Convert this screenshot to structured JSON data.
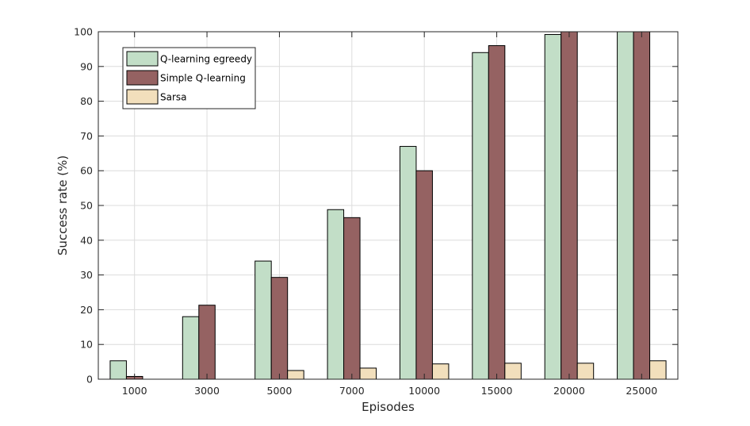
{
  "chart_data": {
    "type": "bar",
    "title": "",
    "xlabel": "Episodes",
    "ylabel": "Success rate (%)",
    "ylim": [
      0,
      100
    ],
    "yticks": [
      0,
      10,
      20,
      30,
      40,
      50,
      60,
      70,
      80,
      90,
      100
    ],
    "grid": true,
    "legend_position": "top-left",
    "categories": [
      "1000",
      "3000",
      "5000",
      "7000",
      "10000",
      "15000",
      "20000",
      "25000"
    ],
    "series": [
      {
        "name": "Q-learning egreedy",
        "color": "#c2dec7",
        "values": [
          5.3,
          18.0,
          34.0,
          48.8,
          67.0,
          94.0,
          99.2,
          100.0
        ]
      },
      {
        "name": "Simple Q-learning",
        "color": "#956262",
        "values": [
          0.8,
          21.3,
          29.3,
          46.5,
          60.0,
          96.0,
          100.0,
          100.0
        ]
      },
      {
        "name": "Sarsa",
        "color": "#f2dfbc",
        "values": [
          0.0,
          0.0,
          2.5,
          3.2,
          4.4,
          4.6,
          4.6,
          5.3
        ]
      }
    ]
  }
}
